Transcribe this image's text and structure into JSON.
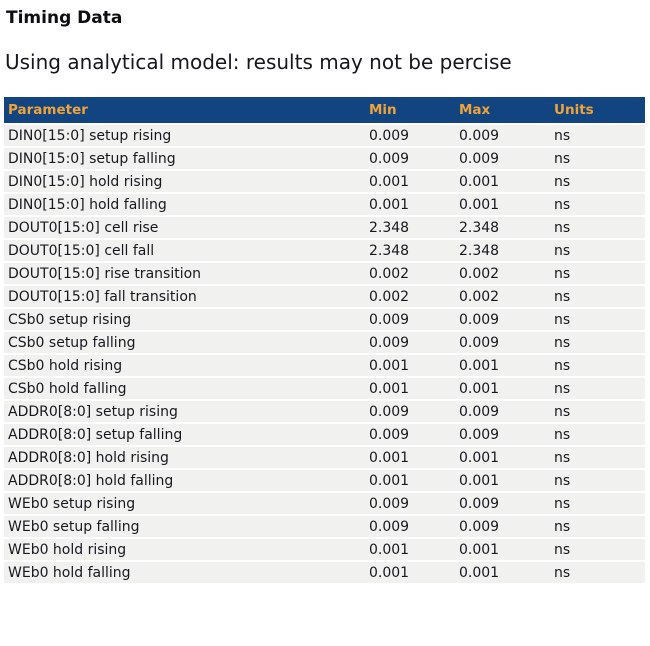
{
  "page": {
    "title": "Timing Data",
    "subtitle": "Using analytical model: results may not be percise"
  },
  "colors": {
    "header_bg": "#12457f",
    "header_text": "#efa339",
    "row_bg": "#f1f1ef",
    "row_text": "#181820"
  },
  "table": {
    "columns": [
      "Parameter",
      "Min",
      "Max",
      "Units"
    ],
    "rows": [
      {
        "parameter": "DIN0[15:0] setup rising",
        "min": "0.009",
        "max": "0.009",
        "units": "ns"
      },
      {
        "parameter": "DIN0[15:0] setup falling",
        "min": "0.009",
        "max": "0.009",
        "units": "ns"
      },
      {
        "parameter": "DIN0[15:0] hold rising",
        "min": "0.001",
        "max": "0.001",
        "units": "ns"
      },
      {
        "parameter": "DIN0[15:0] hold falling",
        "min": "0.001",
        "max": "0.001",
        "units": "ns"
      },
      {
        "parameter": "DOUT0[15:0] cell rise",
        "min": "2.348",
        "max": "2.348",
        "units": "ns"
      },
      {
        "parameter": "DOUT0[15:0] cell fall",
        "min": "2.348",
        "max": "2.348",
        "units": "ns"
      },
      {
        "parameter": "DOUT0[15:0] rise transition",
        "min": "0.002",
        "max": "0.002",
        "units": "ns"
      },
      {
        "parameter": "DOUT0[15:0] fall transition",
        "min": "0.002",
        "max": "0.002",
        "units": "ns"
      },
      {
        "parameter": "CSb0 setup rising",
        "min": "0.009",
        "max": "0.009",
        "units": "ns"
      },
      {
        "parameter": "CSb0 setup falling",
        "min": "0.009",
        "max": "0.009",
        "units": "ns"
      },
      {
        "parameter": "CSb0 hold rising",
        "min": "0.001",
        "max": "0.001",
        "units": "ns"
      },
      {
        "parameter": "CSb0 hold falling",
        "min": "0.001",
        "max": "0.001",
        "units": "ns"
      },
      {
        "parameter": "ADDR0[8:0] setup rising",
        "min": "0.009",
        "max": "0.009",
        "units": "ns"
      },
      {
        "parameter": "ADDR0[8:0] setup falling",
        "min": "0.009",
        "max": "0.009",
        "units": "ns"
      },
      {
        "parameter": "ADDR0[8:0] hold rising",
        "min": "0.001",
        "max": "0.001",
        "units": "ns"
      },
      {
        "parameter": "ADDR0[8:0] hold falling",
        "min": "0.001",
        "max": "0.001",
        "units": "ns"
      },
      {
        "parameter": "WEb0 setup rising",
        "min": "0.009",
        "max": "0.009",
        "units": "ns"
      },
      {
        "parameter": "WEb0 setup falling",
        "min": "0.009",
        "max": "0.009",
        "units": "ns"
      },
      {
        "parameter": "WEb0 hold rising",
        "min": "0.001",
        "max": "0.001",
        "units": "ns"
      },
      {
        "parameter": "WEb0 hold falling",
        "min": "0.001",
        "max": "0.001",
        "units": "ns"
      }
    ]
  }
}
